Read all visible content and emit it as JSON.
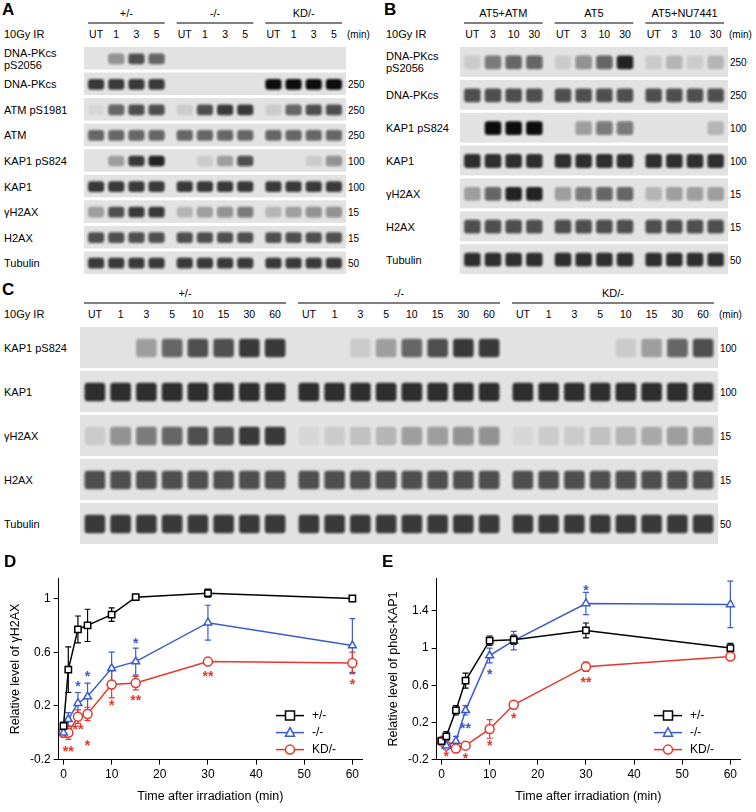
{
  "blots": [
    {
      "panel": "A",
      "treatment": "10Gy IR",
      "unit": "(min)",
      "groups": [
        {
          "name": "+/-",
          "lanes": [
            "UT",
            "1",
            "3",
            "5"
          ]
        },
        {
          "name": "-/-",
          "lanes": [
            "UT",
            "1",
            "3",
            "5"
          ]
        },
        {
          "name": "KD/-",
          "lanes": [
            "UT",
            "1",
            "3",
            "5"
          ]
        }
      ],
      "rows": [
        {
          "label": [
            "DNA-PKcs",
            "pS2056"
          ],
          "bands": [
            0,
            0.4,
            0.7,
            0.6,
            0,
            0,
            0,
            0,
            0,
            0,
            0,
            0
          ]
        },
        {
          "label": [
            "DNA-PKcs"
          ],
          "marker": 250,
          "bands": [
            0.8,
            0.8,
            0.8,
            0.8,
            0,
            0,
            0,
            0,
            1,
            1,
            1,
            1
          ]
        },
        {
          "label": [
            "ATM pS1981"
          ],
          "marker": 250,
          "bands": [
            0.05,
            0.6,
            0.7,
            0.7,
            0.1,
            0.7,
            0.8,
            0.8,
            0.1,
            0.6,
            0.7,
            0.7
          ]
        },
        {
          "label": [
            "ATM"
          ],
          "marker": 250,
          "bands": [
            0.6,
            0.6,
            0.6,
            0.6,
            0.6,
            0.6,
            0.6,
            0.6,
            0.6,
            0.6,
            0.6,
            0.6
          ]
        },
        {
          "label": [
            "KAP1 pS824"
          ],
          "marker": 100,
          "bands": [
            0,
            0.3,
            0.8,
            0.9,
            0,
            0.1,
            0.3,
            0.7,
            0,
            0,
            0.1,
            0.4
          ]
        },
        {
          "label": [
            "KAP1"
          ],
          "marker": 100,
          "bands": [
            0.8,
            0.8,
            0.8,
            0.8,
            0.8,
            0.8,
            0.8,
            0.8,
            0.8,
            0.8,
            0.8,
            0.8
          ]
        },
        {
          "label": [
            "γH2AX"
          ],
          "marker": 15,
          "bands": [
            0.3,
            0.7,
            0.8,
            0.8,
            0.2,
            0.3,
            0.4,
            0.5,
            0.2,
            0.3,
            0.4,
            0.4
          ]
        },
        {
          "label": [
            "H2AX"
          ],
          "marker": 15,
          "bands": [
            0.7,
            0.7,
            0.7,
            0.7,
            0.7,
            0.7,
            0.7,
            0.7,
            0.7,
            0.7,
            0.7,
            0.7
          ]
        },
        {
          "label": [
            "Tubulin"
          ],
          "marker": 50,
          "bands": [
            0.8,
            0.8,
            0.8,
            0.8,
            0.8,
            0.8,
            0.8,
            0.8,
            0.8,
            0.8,
            0.8,
            0.8
          ]
        }
      ]
    },
    {
      "panel": "B",
      "treatment": "10Gy IR",
      "unit": "(min)",
      "groups": [
        {
          "name": "AT5+ATM",
          "lanes": [
            "UT",
            "3",
            "10",
            "30"
          ]
        },
        {
          "name": "AT5",
          "lanes": [
            "UT",
            "3",
            "10",
            "30"
          ]
        },
        {
          "name": "AT5+NU7441",
          "lanes": [
            "UT",
            "3",
            "10",
            "30"
          ]
        }
      ],
      "rows": [
        {
          "label": [
            "DNA-PKcs",
            "pS2056"
          ],
          "marker": 250,
          "bands": [
            0.1,
            0.5,
            0.6,
            0.6,
            0.1,
            0.4,
            0.6,
            0.9,
            0.1,
            0.2,
            0.1,
            0.2
          ]
        },
        {
          "label": [
            "DNA-PKcs"
          ],
          "marker": 250,
          "bands": [
            0.7,
            0.7,
            0.7,
            0.7,
            0.7,
            0.7,
            0.7,
            0.7,
            0.7,
            0.7,
            0.7,
            0.7
          ]
        },
        {
          "label": [
            "KAP1 pS824"
          ],
          "marker": 100,
          "bands": [
            0,
            1,
            1,
            1,
            0,
            0.3,
            0.5,
            0.5,
            0,
            0,
            0,
            0.2
          ]
        },
        {
          "label": [
            "KAP1"
          ],
          "marker": 100,
          "bands": [
            0.85,
            0.85,
            0.85,
            0.85,
            0.85,
            0.85,
            0.85,
            0.85,
            0.85,
            0.85,
            0.85,
            0.85
          ]
        },
        {
          "label": [
            "γH2AX"
          ],
          "marker": 15,
          "bands": [
            0.3,
            0.6,
            0.9,
            0.9,
            0.3,
            0.5,
            0.6,
            0.6,
            0.2,
            0.3,
            0.3,
            0.3
          ]
        },
        {
          "label": [
            "H2AX"
          ],
          "marker": 15,
          "bands": [
            0.7,
            0.7,
            0.7,
            0.7,
            0.7,
            0.7,
            0.7,
            0.7,
            0.7,
            0.7,
            0.7,
            0.7
          ]
        },
        {
          "label": [
            "Tubulin"
          ],
          "marker": 50,
          "bands": [
            0.85,
            0.85,
            0.85,
            0.85,
            0.85,
            0.85,
            0.85,
            0.85,
            0.85,
            0.85,
            0.85,
            0.85
          ]
        }
      ]
    },
    {
      "panel": "C",
      "treatment": "10Gy IR",
      "unit": "(min)",
      "groups": [
        {
          "name": "+/-",
          "lanes": [
            "UT",
            "1",
            "3",
            "5",
            "10",
            "15",
            "30",
            "60"
          ]
        },
        {
          "name": "-/-",
          "lanes": [
            "UT",
            "1",
            "3",
            "5",
            "10",
            "15",
            "30",
            "60"
          ]
        },
        {
          "name": "KD/-",
          "lanes": [
            "UT",
            "1",
            "3",
            "5",
            "10",
            "15",
            "30",
            "60"
          ]
        }
      ],
      "rows": [
        {
          "label": [
            "KAP1 pS824"
          ],
          "marker": 100,
          "bands": [
            0,
            0,
            0.3,
            0.6,
            0.7,
            0.7,
            0.8,
            0.8,
            0,
            0,
            0.1,
            0.3,
            0.6,
            0.7,
            0.8,
            0.8,
            0,
            0,
            0,
            0,
            0.1,
            0.3,
            0.6,
            0.7
          ]
        },
        {
          "label": [
            "KAP1"
          ],
          "marker": 100,
          "bands": [
            0.85,
            0.85,
            0.85,
            0.85,
            0.85,
            0.85,
            0.85,
            0.85,
            0.85,
            0.85,
            0.85,
            0.85,
            0.85,
            0.85,
            0.85,
            0.85,
            0.85,
            0.85,
            0.85,
            0.85,
            0.85,
            0.85,
            0.85,
            0.85
          ]
        },
        {
          "label": [
            "γH2AX"
          ],
          "marker": 15,
          "bands": [
            0.1,
            0.4,
            0.5,
            0.6,
            0.7,
            0.7,
            0.8,
            0.8,
            0.05,
            0.1,
            0.15,
            0.2,
            0.3,
            0.35,
            0.4,
            0.4,
            0.05,
            0.1,
            0.1,
            0.15,
            0.2,
            0.25,
            0.35,
            0.3
          ]
        },
        {
          "label": [
            "H2AX"
          ],
          "marker": 15,
          "bands": [
            0.7,
            0.7,
            0.7,
            0.7,
            0.7,
            0.7,
            0.7,
            0.7,
            0.7,
            0.7,
            0.7,
            0.7,
            0.7,
            0.7,
            0.7,
            0.7,
            0.7,
            0.7,
            0.7,
            0.7,
            0.7,
            0.7,
            0.7,
            0.7
          ]
        },
        {
          "label": [
            "Tubulin"
          ],
          "marker": 50,
          "bands": [
            0.8,
            0.8,
            0.8,
            0.8,
            0.8,
            0.8,
            0.8,
            0.8,
            0.8,
            0.8,
            0.8,
            0.8,
            0.8,
            0.8,
            0.8,
            0.8,
            0.8,
            0.8,
            0.8,
            0.8,
            0.8,
            0.8,
            0.8,
            0.8
          ]
        }
      ]
    }
  ],
  "chart_data": [
    {
      "type": "line",
      "title": "D",
      "x_label": "Time after irradiation (min)",
      "y_label": "Relative level of γH2AX",
      "x": [
        0,
        1,
        3,
        5,
        10,
        15,
        30,
        60
      ],
      "xlim": [
        -1,
        62
      ],
      "xticks": [
        0,
        10,
        20,
        30,
        40,
        50,
        60
      ],
      "ylim": [
        -0.2,
        1.15
      ],
      "yticks": [
        -0.2,
        0.2,
        0.6,
        1
      ],
      "grid": false,
      "legend": "lower right",
      "series": [
        {
          "name": "+/-",
          "color": "#000000",
          "marker": "square",
          "values": [
            0.05,
            0.47,
            0.77,
            0.8,
            0.88,
            1.01,
            1.04,
            1.0
          ],
          "errors": [
            0.03,
            0.17,
            0.1,
            0.12,
            0.05,
            0.02,
            0.03,
            0.02
          ]
        },
        {
          "name": "-/-",
          "color": "#3a5bd0",
          "marker": "triangle",
          "values": [
            0.0,
            0.1,
            0.22,
            0.27,
            0.48,
            0.53,
            0.82,
            0.65
          ],
          "errors": [
            0.03,
            0.05,
            0.08,
            0.1,
            0.12,
            0.1,
            0.13,
            0.2
          ]
        },
        {
          "name": "KD/-",
          "color": "#e8362a",
          "marker": "circle",
          "values": [
            0.0,
            0.0,
            0.12,
            0.14,
            0.36,
            0.37,
            0.53,
            0.52
          ],
          "errors": [
            0.03,
            0.05,
            0.05,
            0.05,
            0.1,
            0.05,
            0.02,
            0.08
          ]
        }
      ],
      "annotations": [
        {
          "x": 3,
          "y": 0.36,
          "text": "*",
          "series": "-/-"
        },
        {
          "x": 5,
          "y": 0.44,
          "text": "*",
          "series": "-/-"
        },
        {
          "x": 15,
          "y": 0.68,
          "text": "*",
          "series": "-/-"
        },
        {
          "x": 1,
          "y": -0.12,
          "text": "**",
          "series": "KD/-"
        },
        {
          "x": 3,
          "y": 0.04,
          "text": "**",
          "series": "KD/-"
        },
        {
          "x": 5,
          "y": -0.08,
          "text": "*",
          "series": "KD/-"
        },
        {
          "x": 10,
          "y": 0.22,
          "text": "*",
          "series": "KD/-"
        },
        {
          "x": 15,
          "y": 0.26,
          "text": "**",
          "series": "KD/-"
        },
        {
          "x": 30,
          "y": 0.44,
          "text": "**",
          "series": "KD/-"
        },
        {
          "x": 60,
          "y": 0.38,
          "text": "*",
          "series": "KD/-"
        }
      ]
    },
    {
      "type": "line",
      "title": "E",
      "x_label": "Time after irradiation (min)",
      "y_label": "Relative level of phos-KAP1",
      "x": [
        0,
        1,
        3,
        5,
        10,
        15,
        30,
        60
      ],
      "xlim": [
        -1,
        62
      ],
      "xticks": [
        0,
        10,
        20,
        30,
        40,
        50,
        60
      ],
      "ylim": [
        -0.2,
        1.75
      ],
      "yticks": [
        -0.2,
        0.2,
        0.6,
        1,
        1.4
      ],
      "grid": false,
      "legend": "lower right",
      "series": [
        {
          "name": "+/-",
          "color": "#000000",
          "marker": "square",
          "values": [
            0.0,
            0.05,
            0.33,
            0.65,
            1.08,
            1.09,
            1.19,
            1.0
          ],
          "errors": [
            0.03,
            0.05,
            0.05,
            0.08,
            0.05,
            0.05,
            0.08,
            0.05
          ]
        },
        {
          "name": "-/-",
          "color": "#3a5bd0",
          "marker": "triangle",
          "values": [
            0.0,
            -0.05,
            0.0,
            0.33,
            0.92,
            1.08,
            1.48,
            1.47
          ],
          "errors": [
            0.03,
            0.03,
            0.05,
            0.05,
            0.08,
            0.1,
            0.12,
            0.25
          ]
        },
        {
          "name": "KD/-",
          "color": "#e8362a",
          "marker": "circle",
          "values": [
            0.0,
            -0.05,
            -0.08,
            -0.05,
            0.13,
            0.39,
            0.8,
            0.91
          ],
          "errors": [
            0.03,
            0.03,
            0.03,
            0.03,
            0.1,
            0.02,
            0.05,
            0.03
          ]
        }
      ],
      "annotations": [
        {
          "x": 5,
          "y": 0.16,
          "text": "**",
          "series": "-/-"
        },
        {
          "x": 10,
          "y": 0.74,
          "text": "*",
          "series": "-/-"
        },
        {
          "x": 30,
          "y": 1.64,
          "text": "*",
          "series": "-/-"
        },
        {
          "x": 1,
          "y": -0.14,
          "text": "*",
          "series": "KD/-"
        },
        {
          "x": 5,
          "y": -0.16,
          "text": "*",
          "series": "KD/-"
        },
        {
          "x": 10,
          "y": -0.02,
          "text": "*",
          "series": "KD/-"
        },
        {
          "x": 15,
          "y": 0.27,
          "text": "*",
          "series": "KD/-"
        },
        {
          "x": 30,
          "y": 0.66,
          "text": "**",
          "series": "KD/-"
        }
      ]
    }
  ]
}
